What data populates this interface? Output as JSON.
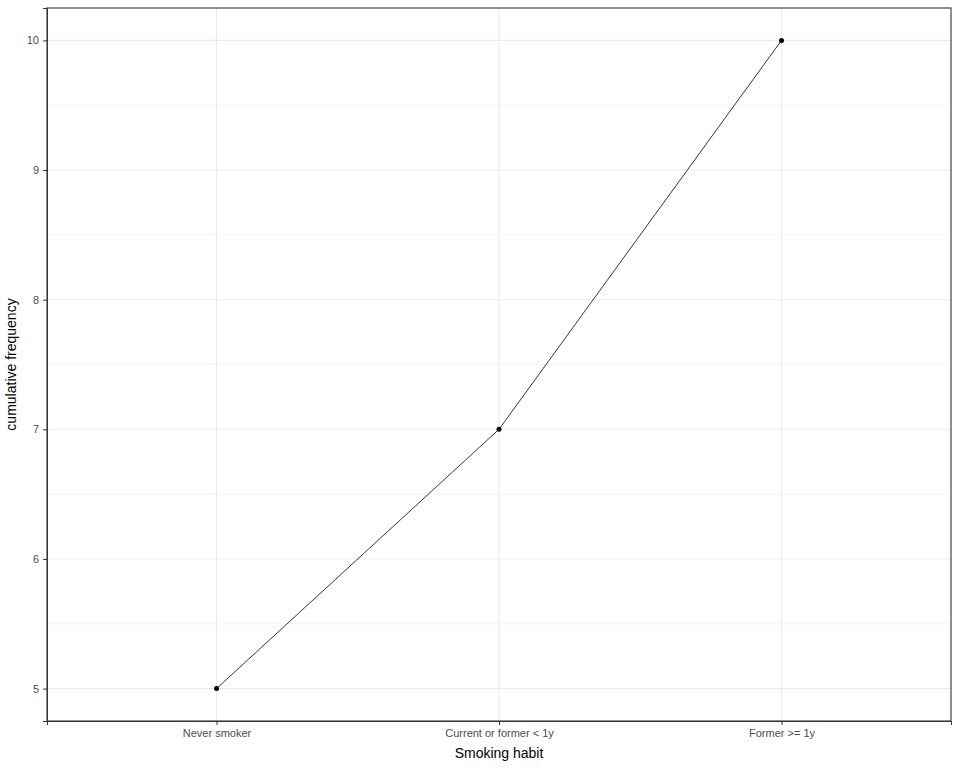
{
  "chart_data": {
    "type": "line",
    "x_label": "Smoking habit",
    "y_label": "cumulative frequency",
    "categories": [
      "Never smoker",
      "Current or former < 1y",
      "Former >= 1y"
    ],
    "values": [
      5,
      7,
      10
    ],
    "color": "#000000",
    "marker": "circle",
    "line_style": "solid",
    "ylim": [
      4.75,
      10.25
    ],
    "yticks": [
      5,
      6,
      7,
      8,
      9,
      10
    ],
    "grid": true
  }
}
